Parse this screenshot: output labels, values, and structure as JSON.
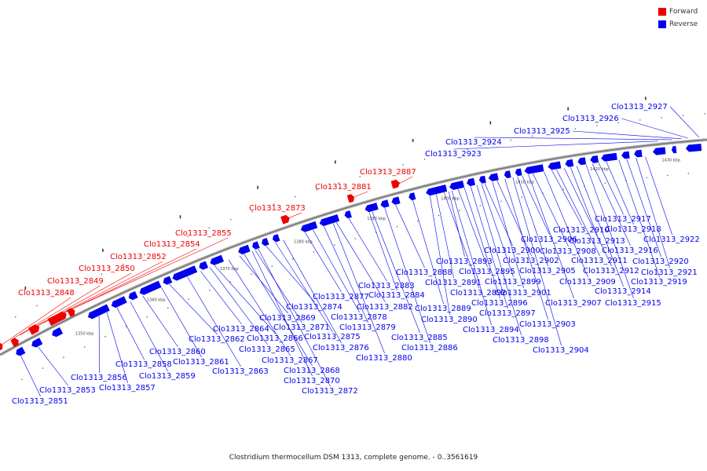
{
  "title": "Clostridium thermocellum DSM 1313, complete genome. - 0..3561619",
  "legend": [
    {
      "label": "Forward",
      "color": "#ee0000"
    },
    {
      "label": "Reverse",
      "color": "#0000ee"
    }
  ],
  "colors": {
    "forward": "#ee0000",
    "reverse": "#0000ee",
    "backbone": "#777777"
  },
  "ticks": [
    "1350 kbp",
    "1360 kbp",
    "1370 kbp",
    "1380 kbp",
    "1390 kbp",
    "1400 kbp",
    "1410 kbp",
    "1420 kbp",
    "1430 kbp"
  ],
  "forward_genes": [
    "Clo1313_2848",
    "Clo1313_2849",
    "Clo1313_2850",
    "Clo1313_2852",
    "Clo1313_2854",
    "Clo1313_2855",
    "Clo1313_2873",
    "Clo1313_2881",
    "Clo1313_2887"
  ],
  "reverse_genes": [
    "Clo1313_2851",
    "Clo1313_2853",
    "Clo1313_2856",
    "Clo1313_2857",
    "Clo1313_2858",
    "Clo1313_2859",
    "Clo1313_2860",
    "Clo1313_2861",
    "Clo1313_2862",
    "Clo1313_2863",
    "Clo1313_2864",
    "Clo1313_2865",
    "Clo1313_2866",
    "Clo1313_2867",
    "Clo1313_2868",
    "Clo1313_2869",
    "Clo1313_2870",
    "Clo1313_2871",
    "Clo1313_2872",
    "Clo1313_2874",
    "Clo1313_2875",
    "Clo1313_2876",
    "Clo1313_2877",
    "Clo1313_2878",
    "Clo1313_2879",
    "Clo1313_2880",
    "Clo1313_2882",
    "Clo1313_2883",
    "Clo1313_2884",
    "Clo1313_2885",
    "Clo1313_2886",
    "Clo1313_2888",
    "Clo1313_2889",
    "Clo1313_2890",
    "Clo1313_2891",
    "Clo1313_2892",
    "Clo1313_2893",
    "Clo1313_2894",
    "Clo1313_2895",
    "Clo1313_2896",
    "Clo1313_2897",
    "Clo1313_2898",
    "Clo1313_2899",
    "Clo1313_2900",
    "Clo1313_2901",
    "Clo1313_2902",
    "Clo1313_2903",
    "Clo1313_2904",
    "Clo1313_2905",
    "Clo1313_2906",
    "Clo1313_2907",
    "Clo1313_2908",
    "Clo1313_2909",
    "Clo1313_2910",
    "Clo1313_2911",
    "Clo1313_2912",
    "Clo1313_2913",
    "Clo1313_2914",
    "Clo1313_2915",
    "Clo1313_2916",
    "Clo1313_2917",
    "Clo1313_2918",
    "Clo1313_2919",
    "Clo1313_2920",
    "Clo1313_2921",
    "Clo1313_2922",
    "Clo1313_2923",
    "Clo1313_2924",
    "Clo1313_2925",
    "Clo1313_2926",
    "Clo1313_2927"
  ]
}
